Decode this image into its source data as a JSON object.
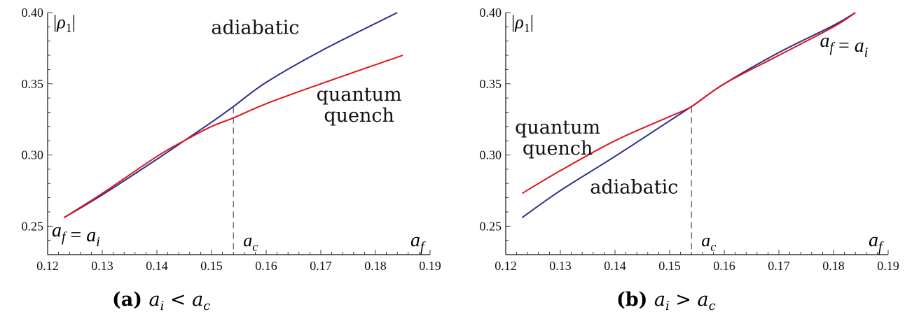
{
  "chart_data": [
    {
      "type": "line",
      "caption_tag": "(a)",
      "caption_math": {
        "lhs": "a",
        "lhs_sub": "i",
        "op": "<",
        "rhs": "a",
        "rhs_sub": "c"
      },
      "ylabel": "|ρ₁|",
      "xlabel": "a_f",
      "xlim": [
        0.12,
        0.19
      ],
      "ylim": [
        0.23,
        0.4
      ],
      "xticks": [
        "0.12",
        "0.13",
        "0.14",
        "0.15",
        "0.16",
        "0.17",
        "0.18",
        "0.19"
      ],
      "yticks": [
        "0.25",
        "0.30",
        "0.35",
        "0.40"
      ],
      "critical_x": 0.154,
      "critical_label": "a_c",
      "annotation_ai": "a_f = a_i",
      "series": [
        {
          "name": "adiabatic",
          "color": "#2b2f8f",
          "x": [
            0.123,
            0.13,
            0.14,
            0.145,
            0.15,
            0.154,
            0.16,
            0.17,
            0.184
          ],
          "y": [
            0.256,
            0.272,
            0.297,
            0.31,
            0.323,
            0.334,
            0.351,
            0.373,
            0.4
          ]
        },
        {
          "name": "quantum quench",
          "color": "#e0161b",
          "x": [
            0.123,
            0.13,
            0.14,
            0.145,
            0.15,
            0.154,
            0.16,
            0.17,
            0.185
          ],
          "y": [
            0.256,
            0.273,
            0.299,
            0.31,
            0.32,
            0.326,
            0.336,
            0.35,
            0.37
          ]
        }
      ],
      "series_labels": [
        {
          "lines": [
            "adiabatic"
          ],
          "x": 0.158,
          "y": 0.385
        },
        {
          "lines": [
            "quantum",
            "quench"
          ],
          "x": 0.177,
          "y": 0.338
        }
      ]
    },
    {
      "type": "line",
      "caption_tag": "(b)",
      "caption_math": {
        "lhs": "a",
        "lhs_sub": "i",
        "op": ">",
        "rhs": "a",
        "rhs_sub": "c"
      },
      "ylabel": "|ρ₁|",
      "xlabel": "a_f",
      "xlim": [
        0.12,
        0.19
      ],
      "ylim": [
        0.23,
        0.4
      ],
      "xticks": [
        "0.12",
        "0.13",
        "0.14",
        "0.15",
        "0.16",
        "0.17",
        "0.18",
        "0.19"
      ],
      "yticks": [
        "0.25",
        "0.30",
        "0.35",
        "0.40"
      ],
      "critical_x": 0.154,
      "critical_label": "a_c",
      "annotation_ai": "a_f = a_i",
      "series": [
        {
          "name": "adiabatic",
          "color": "#2b2f8f",
          "x": [
            0.123,
            0.13,
            0.14,
            0.15,
            0.154,
            0.16,
            0.17,
            0.18,
            0.184
          ],
          "y": [
            0.256,
            0.275,
            0.299,
            0.324,
            0.334,
            0.35,
            0.372,
            0.391,
            0.4
          ]
        },
        {
          "name": "quantum quench",
          "color": "#e0161b",
          "x": [
            0.123,
            0.13,
            0.14,
            0.15,
            0.154,
            0.16,
            0.17,
            0.18,
            0.184
          ],
          "y": [
            0.273,
            0.289,
            0.31,
            0.327,
            0.334,
            0.35,
            0.37,
            0.39,
            0.4
          ]
        }
      ],
      "series_labels": [
        {
          "lines": [
            "quantum",
            "quench"
          ],
          "x": 0.1295,
          "y": 0.315
        },
        {
          "lines": [
            "adiabatic"
          ],
          "x": 0.1435,
          "y": 0.273
        }
      ]
    }
  ]
}
